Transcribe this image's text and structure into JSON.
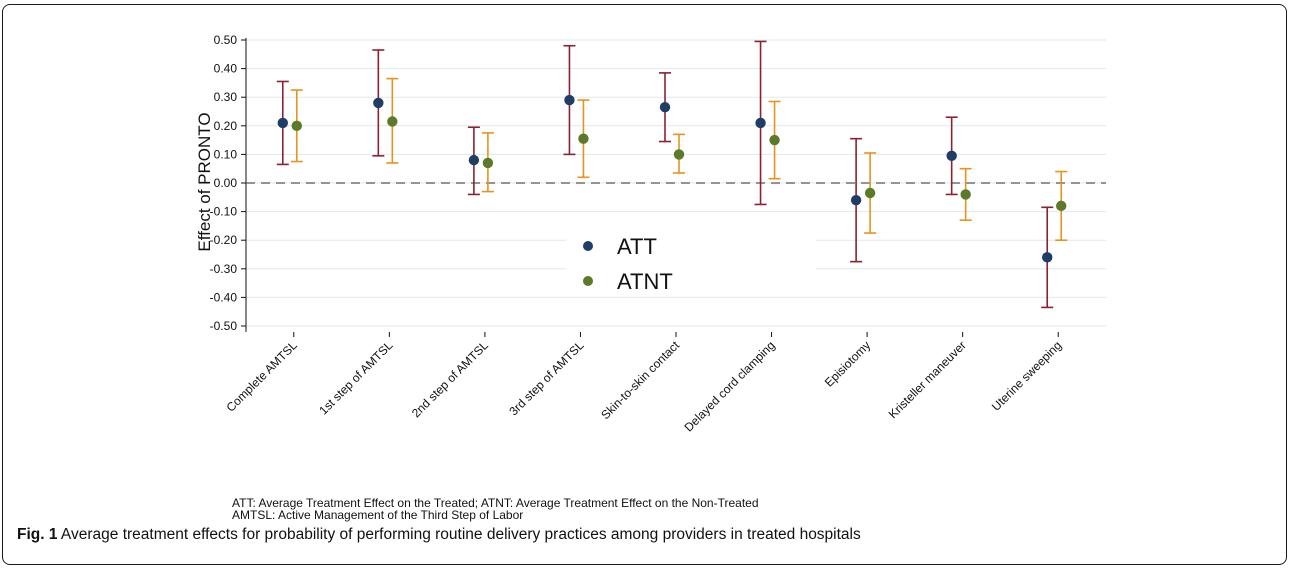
{
  "chart_data": {
    "type": "scatter",
    "ylabel": "Effect of PRONTO",
    "xlabel": "",
    "ylim": [
      -0.5,
      0.5
    ],
    "yticks": [
      "0.50",
      "0.40",
      "0.30",
      "0.20",
      "0.10",
      "0.00",
      "-0.10",
      "-0.20",
      "-0.30",
      "-0.40",
      "-0.50"
    ],
    "reference_line": 0,
    "grid": true,
    "legend_position": "center",
    "categories": [
      "Complete AMTSL",
      "1st step of AMTSL",
      "2nd step of AMTSL",
      "3rd step of AMTSL",
      "Skin-to-skin contact",
      "Delayed cord clamping",
      "Episiotomy",
      "Kristeller maneuver",
      "Uterine sweeping"
    ],
    "series": [
      {
        "name": "ATT",
        "color": "#1f3d66",
        "ci_color": "#8b2232",
        "values": [
          0.21,
          0.28,
          0.08,
          0.29,
          0.265,
          0.21,
          -0.06,
          0.095,
          -0.26
        ],
        "lower": [
          0.065,
          0.095,
          -0.04,
          0.1,
          0.145,
          -0.075,
          -0.275,
          -0.04,
          -0.435
        ],
        "upper": [
          0.355,
          0.465,
          0.195,
          0.48,
          0.385,
          0.495,
          0.155,
          0.23,
          -0.085
        ]
      },
      {
        "name": "ATNT",
        "color": "#5b7a2a",
        "ci_color": "#e8921f",
        "values": [
          0.2,
          0.215,
          0.07,
          0.155,
          0.1,
          0.15,
          -0.035,
          -0.04,
          -0.08
        ],
        "lower": [
          0.075,
          0.07,
          -0.03,
          0.02,
          0.035,
          0.015,
          -0.175,
          -0.13,
          -0.2
        ],
        "upper": [
          0.325,
          0.365,
          0.175,
          0.29,
          0.17,
          0.285,
          0.105,
          0.05,
          0.04
        ]
      }
    ]
  },
  "notes": {
    "line1": "ATT: Average Treatment Effect on the Treated; ATNT: Average Treatment Effect on the Non-Treated",
    "line2": "AMTSL: Active Management of the Third Step of Labor"
  },
  "caption": {
    "label": "Fig. 1",
    "text": " Average treatment effects for probability of performing routine delivery practices among providers in treated hospitals"
  }
}
